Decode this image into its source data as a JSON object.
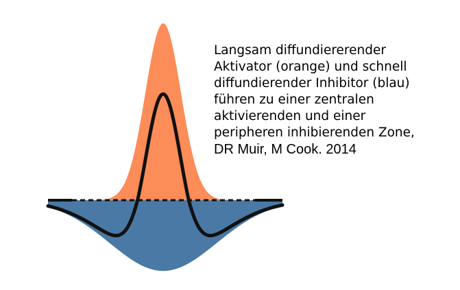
{
  "diagram": {
    "colors": {
      "activator": "#fc8d59",
      "inhibitor": "#4a79a5",
      "net_curve": "#111111",
      "baseline": "#111111"
    },
    "model": {
      "activator_amplitude": 1.0,
      "activator_width": 1.0,
      "inhibitor_amplitude": 0.4,
      "inhibitor_width": 3.0,
      "net_peak": 0.6,
      "net_trough": -0.2
    }
  },
  "caption": {
    "lines": [
      "Langsam diffundiererender",
      "Aktivator (orange) und schnell",
      "diffundierender Inhibitor (blau)",
      "führen zu einer zentralen",
      "aktivierenden und einer",
      "peripheren inhibierenden Zone,"
    ],
    "credit": "DR Muir, M Cook. 2014"
  }
}
